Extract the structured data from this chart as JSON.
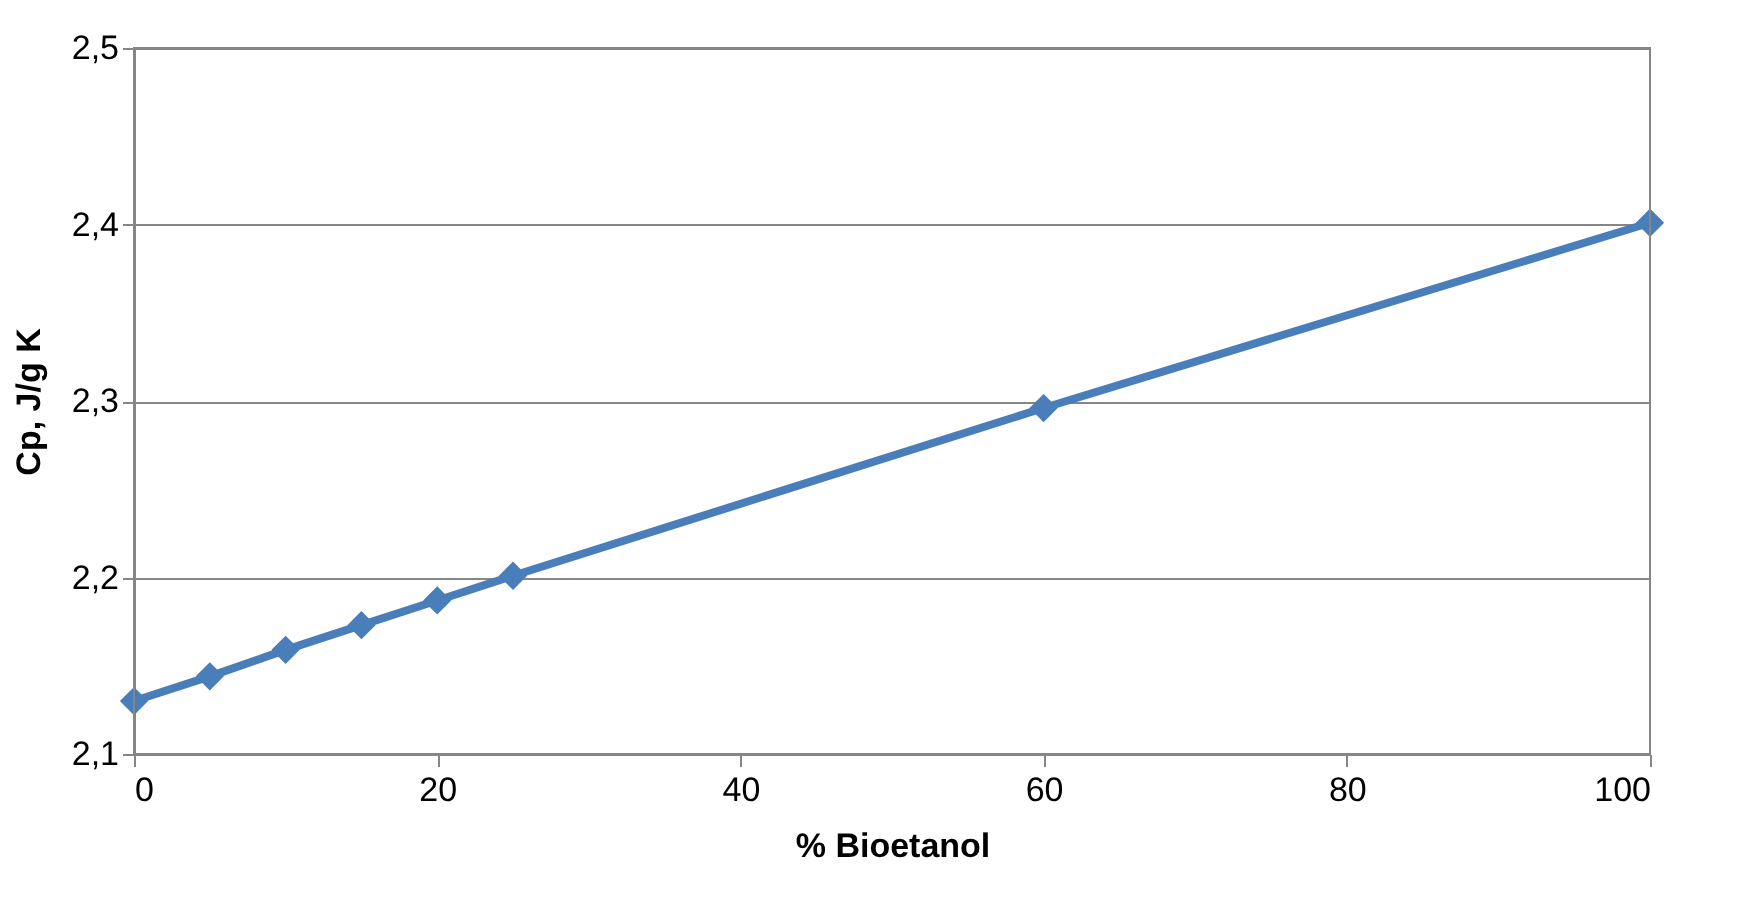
{
  "chart_data": {
    "type": "line",
    "xlabel": "% Bioetanol",
    "ylabel": "Cp, J/g K",
    "x": [
      0,
      5,
      10,
      15,
      20,
      25,
      60,
      100
    ],
    "series": [
      {
        "color": "#4a7ebb",
        "values": [
          2.13,
          2.144,
          2.159,
          2.173,
          2.187,
          2.201,
          2.296,
          2.401
        ]
      }
    ],
    "xlim": [
      0,
      100
    ],
    "xticks": [
      0,
      20,
      40,
      60,
      80,
      100
    ],
    "ylim": [
      2.1,
      2.5
    ],
    "yticks": [
      {
        "value": 2.1,
        "label": "2,1"
      },
      {
        "value": 2.2,
        "label": "2,2"
      },
      {
        "value": 2.3,
        "label": "2,3"
      },
      {
        "value": 2.4,
        "label": "2,4"
      },
      {
        "value": 2.5,
        "label": "2,5"
      }
    ],
    "grid": "y",
    "marker": "diamond",
    "line_style": "solid"
  }
}
